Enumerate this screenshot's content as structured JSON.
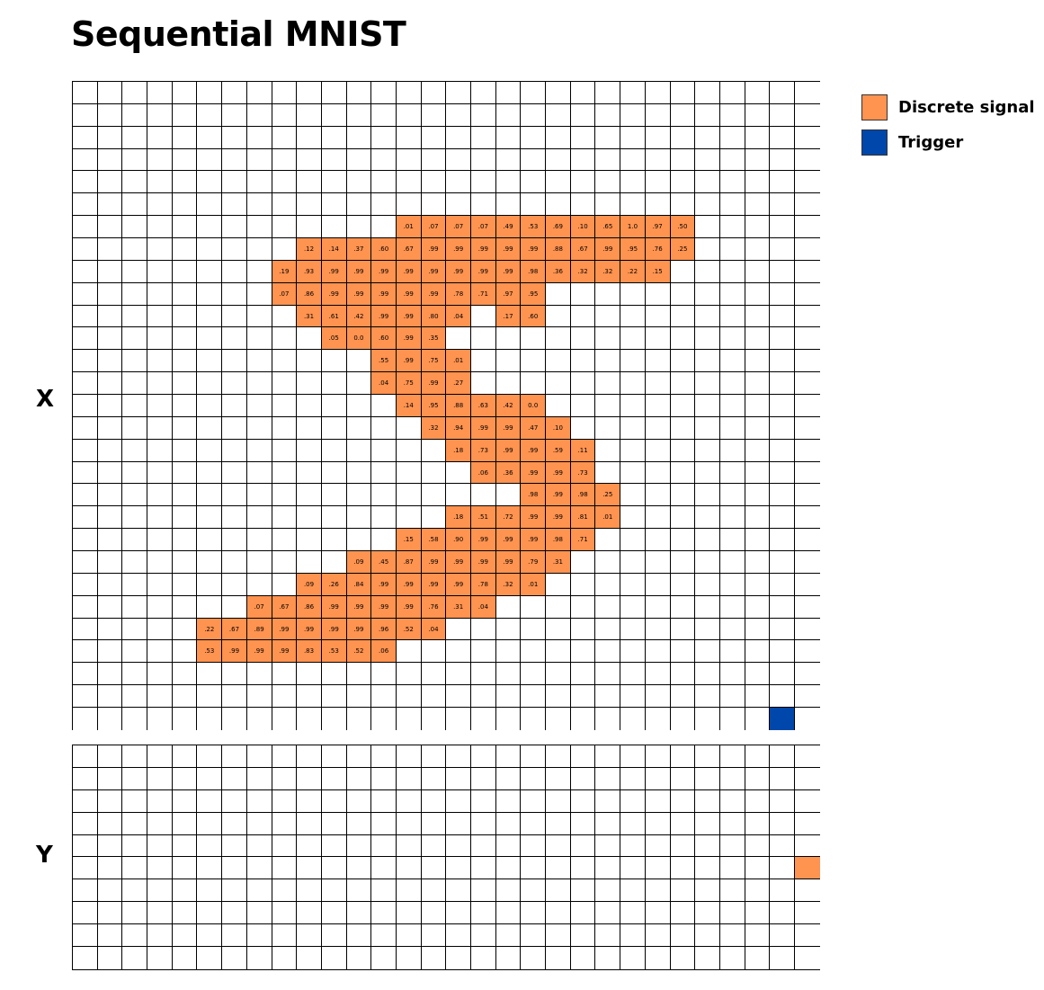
{
  "title": "Sequential MNIST",
  "x_label": "X",
  "y_label": "Y",
  "colors": {
    "signal": "#FF9350",
    "trigger": "#0047AB"
  },
  "legend": [
    {
      "label": "Discrete signal",
      "color": "#FF9350"
    },
    {
      "label": "Trigger",
      "color": "#0047AB"
    }
  ],
  "x_grid": {
    "rows": 29,
    "cols": 30,
    "cells": [
      {
        "r": 6,
        "c": 13,
        "v": ".01"
      },
      {
        "r": 6,
        "c": 14,
        "v": ".07"
      },
      {
        "r": 6,
        "c": 15,
        "v": ".07"
      },
      {
        "r": 6,
        "c": 16,
        "v": ".07"
      },
      {
        "r": 6,
        "c": 17,
        "v": ".49"
      },
      {
        "r": 6,
        "c": 18,
        "v": ".53"
      },
      {
        "r": 6,
        "c": 19,
        "v": ".69"
      },
      {
        "r": 6,
        "c": 20,
        "v": ".10"
      },
      {
        "r": 6,
        "c": 21,
        "v": ".65"
      },
      {
        "r": 6,
        "c": 22,
        "v": "1.0"
      },
      {
        "r": 6,
        "c": 23,
        "v": ".97"
      },
      {
        "r": 6,
        "c": 24,
        "v": ".50"
      },
      {
        "r": 7,
        "c": 9,
        "v": ".12"
      },
      {
        "r": 7,
        "c": 10,
        "v": ".14"
      },
      {
        "r": 7,
        "c": 11,
        "v": ".37"
      },
      {
        "r": 7,
        "c": 12,
        "v": ".60"
      },
      {
        "r": 7,
        "c": 13,
        "v": ".67"
      },
      {
        "r": 7,
        "c": 14,
        "v": ".99"
      },
      {
        "r": 7,
        "c": 15,
        "v": ".99"
      },
      {
        "r": 7,
        "c": 16,
        "v": ".99"
      },
      {
        "r": 7,
        "c": 17,
        "v": ".99"
      },
      {
        "r": 7,
        "c": 18,
        "v": ".99"
      },
      {
        "r": 7,
        "c": 19,
        "v": ".88"
      },
      {
        "r": 7,
        "c": 20,
        "v": ".67"
      },
      {
        "r": 7,
        "c": 21,
        "v": ".99"
      },
      {
        "r": 7,
        "c": 22,
        "v": ".95"
      },
      {
        "r": 7,
        "c": 23,
        "v": ".76"
      },
      {
        "r": 7,
        "c": 24,
        "v": ".25"
      },
      {
        "r": 8,
        "c": 8,
        "v": ".19"
      },
      {
        "r": 8,
        "c": 9,
        "v": ".93"
      },
      {
        "r": 8,
        "c": 10,
        "v": ".99"
      },
      {
        "r": 8,
        "c": 11,
        "v": ".99"
      },
      {
        "r": 8,
        "c": 12,
        "v": ".99"
      },
      {
        "r": 8,
        "c": 13,
        "v": ".99"
      },
      {
        "r": 8,
        "c": 14,
        "v": ".99"
      },
      {
        "r": 8,
        "c": 15,
        "v": ".99"
      },
      {
        "r": 8,
        "c": 16,
        "v": ".99"
      },
      {
        "r": 8,
        "c": 17,
        "v": ".99"
      },
      {
        "r": 8,
        "c": 18,
        "v": ".98"
      },
      {
        "r": 8,
        "c": 19,
        "v": ".36"
      },
      {
        "r": 8,
        "c": 20,
        "v": ".32"
      },
      {
        "r": 8,
        "c": 21,
        "v": ".32"
      },
      {
        "r": 8,
        "c": 22,
        "v": ".22"
      },
      {
        "r": 8,
        "c": 23,
        "v": ".15"
      },
      {
        "r": 9,
        "c": 8,
        "v": ".07"
      },
      {
        "r": 9,
        "c": 9,
        "v": ".86"
      },
      {
        "r": 9,
        "c": 10,
        "v": ".99"
      },
      {
        "r": 9,
        "c": 11,
        "v": ".99"
      },
      {
        "r": 9,
        "c": 12,
        "v": ".99"
      },
      {
        "r": 9,
        "c": 13,
        "v": ".99"
      },
      {
        "r": 9,
        "c": 14,
        "v": ".99"
      },
      {
        "r": 9,
        "c": 15,
        "v": ".78"
      },
      {
        "r": 9,
        "c": 16,
        "v": ".71"
      },
      {
        "r": 9,
        "c": 17,
        "v": ".97"
      },
      {
        "r": 9,
        "c": 18,
        "v": ".95"
      },
      {
        "r": 10,
        "c": 9,
        "v": ".31"
      },
      {
        "r": 10,
        "c": 10,
        "v": ".61"
      },
      {
        "r": 10,
        "c": 11,
        "v": ".42"
      },
      {
        "r": 10,
        "c": 12,
        "v": ".99"
      },
      {
        "r": 10,
        "c": 13,
        "v": ".99"
      },
      {
        "r": 10,
        "c": 14,
        "v": ".80"
      },
      {
        "r": 10,
        "c": 15,
        "v": ".04"
      },
      {
        "r": 10,
        "c": 17,
        "v": ".17"
      },
      {
        "r": 10,
        "c": 18,
        "v": ".60"
      },
      {
        "r": 11,
        "c": 10,
        "v": ".05"
      },
      {
        "r": 11,
        "c": 11,
        "v": "0.0"
      },
      {
        "r": 11,
        "c": 12,
        "v": ".60"
      },
      {
        "r": 11,
        "c": 13,
        "v": ".99"
      },
      {
        "r": 11,
        "c": 14,
        "v": ".35"
      },
      {
        "r": 12,
        "c": 12,
        "v": ".55"
      },
      {
        "r": 12,
        "c": 13,
        "v": ".99"
      },
      {
        "r": 12,
        "c": 14,
        "v": ".75"
      },
      {
        "r": 12,
        "c": 15,
        "v": ".01"
      },
      {
        "r": 13,
        "c": 12,
        "v": ".04"
      },
      {
        "r": 13,
        "c": 13,
        "v": ".75"
      },
      {
        "r": 13,
        "c": 14,
        "v": ".99"
      },
      {
        "r": 13,
        "c": 15,
        "v": ".27"
      },
      {
        "r": 14,
        "c": 13,
        "v": ".14"
      },
      {
        "r": 14,
        "c": 14,
        "v": ".95"
      },
      {
        "r": 14,
        "c": 15,
        "v": ".88"
      },
      {
        "r": 14,
        "c": 16,
        "v": ".63"
      },
      {
        "r": 14,
        "c": 17,
        "v": ".42"
      },
      {
        "r": 14,
        "c": 18,
        "v": "0.0"
      },
      {
        "r": 15,
        "c": 14,
        "v": ".32"
      },
      {
        "r": 15,
        "c": 15,
        "v": ".94"
      },
      {
        "r": 15,
        "c": 16,
        "v": ".99"
      },
      {
        "r": 15,
        "c": 17,
        "v": ".99"
      },
      {
        "r": 15,
        "c": 18,
        "v": ".47"
      },
      {
        "r": 15,
        "c": 19,
        "v": ".10"
      },
      {
        "r": 16,
        "c": 15,
        "v": ".18"
      },
      {
        "r": 16,
        "c": 16,
        "v": ".73"
      },
      {
        "r": 16,
        "c": 17,
        "v": ".99"
      },
      {
        "r": 16,
        "c": 18,
        "v": ".99"
      },
      {
        "r": 16,
        "c": 19,
        "v": ".59"
      },
      {
        "r": 16,
        "c": 20,
        "v": ".11"
      },
      {
        "r": 17,
        "c": 16,
        "v": ".06"
      },
      {
        "r": 17,
        "c": 17,
        "v": ".36"
      },
      {
        "r": 17,
        "c": 18,
        "v": ".99"
      },
      {
        "r": 17,
        "c": 19,
        "v": ".99"
      },
      {
        "r": 17,
        "c": 20,
        "v": ".73"
      },
      {
        "r": 18,
        "c": 18,
        "v": ".98"
      },
      {
        "r": 18,
        "c": 19,
        "v": ".99"
      },
      {
        "r": 18,
        "c": 20,
        "v": ".98"
      },
      {
        "r": 18,
        "c": 21,
        "v": ".25"
      },
      {
        "r": 19,
        "c": 15,
        "v": ".18"
      },
      {
        "r": 19,
        "c": 16,
        "v": ".51"
      },
      {
        "r": 19,
        "c": 17,
        "v": ".72"
      },
      {
        "r": 19,
        "c": 18,
        "v": ".99"
      },
      {
        "r": 19,
        "c": 19,
        "v": ".99"
      },
      {
        "r": 19,
        "c": 20,
        "v": ".81"
      },
      {
        "r": 19,
        "c": 21,
        "v": ".01"
      },
      {
        "r": 20,
        "c": 13,
        "v": ".15"
      },
      {
        "r": 20,
        "c": 14,
        "v": ".58"
      },
      {
        "r": 20,
        "c": 15,
        "v": ".90"
      },
      {
        "r": 20,
        "c": 16,
        "v": ".99"
      },
      {
        "r": 20,
        "c": 17,
        "v": ".99"
      },
      {
        "r": 20,
        "c": 18,
        "v": ".99"
      },
      {
        "r": 20,
        "c": 19,
        "v": ".98"
      },
      {
        "r": 20,
        "c": 20,
        "v": ".71"
      },
      {
        "r": 21,
        "c": 11,
        "v": ".09"
      },
      {
        "r": 21,
        "c": 12,
        "v": ".45"
      },
      {
        "r": 21,
        "c": 13,
        "v": ".87"
      },
      {
        "r": 21,
        "c": 14,
        "v": ".99"
      },
      {
        "r": 21,
        "c": 15,
        "v": ".99"
      },
      {
        "r": 21,
        "c": 16,
        "v": ".99"
      },
      {
        "r": 21,
        "c": 17,
        "v": ".99"
      },
      {
        "r": 21,
        "c": 18,
        "v": ".79"
      },
      {
        "r": 21,
        "c": 19,
        "v": ".31"
      },
      {
        "r": 22,
        "c": 9,
        "v": ".09"
      },
      {
        "r": 22,
        "c": 10,
        "v": ".26"
      },
      {
        "r": 22,
        "c": 11,
        "v": ".84"
      },
      {
        "r": 22,
        "c": 12,
        "v": ".99"
      },
      {
        "r": 22,
        "c": 13,
        "v": ".99"
      },
      {
        "r": 22,
        "c": 14,
        "v": ".99"
      },
      {
        "r": 22,
        "c": 15,
        "v": ".99"
      },
      {
        "r": 22,
        "c": 16,
        "v": ".78"
      },
      {
        "r": 22,
        "c": 17,
        "v": ".32"
      },
      {
        "r": 22,
        "c": 18,
        "v": ".01"
      },
      {
        "r": 23,
        "c": 7,
        "v": ".07"
      },
      {
        "r": 23,
        "c": 8,
        "v": ".67"
      },
      {
        "r": 23,
        "c": 9,
        "v": ".86"
      },
      {
        "r": 23,
        "c": 10,
        "v": ".99"
      },
      {
        "r": 23,
        "c": 11,
        "v": ".99"
      },
      {
        "r": 23,
        "c": 12,
        "v": ".99"
      },
      {
        "r": 23,
        "c": 13,
        "v": ".99"
      },
      {
        "r": 23,
        "c": 14,
        "v": ".76"
      },
      {
        "r": 23,
        "c": 15,
        "v": ".31"
      },
      {
        "r": 23,
        "c": 16,
        "v": ".04"
      },
      {
        "r": 24,
        "c": 5,
        "v": ".22"
      },
      {
        "r": 24,
        "c": 6,
        "v": ".67"
      },
      {
        "r": 24,
        "c": 7,
        "v": ".89"
      },
      {
        "r": 24,
        "c": 8,
        "v": ".99"
      },
      {
        "r": 24,
        "c": 9,
        "v": ".99"
      },
      {
        "r": 24,
        "c": 10,
        "v": ".99"
      },
      {
        "r": 24,
        "c": 11,
        "v": ".99"
      },
      {
        "r": 24,
        "c": 12,
        "v": ".96"
      },
      {
        "r": 24,
        "c": 13,
        "v": ".52"
      },
      {
        "r": 24,
        "c": 14,
        "v": ".04"
      },
      {
        "r": 25,
        "c": 5,
        "v": ".53"
      },
      {
        "r": 25,
        "c": 6,
        "v": ".99"
      },
      {
        "r": 25,
        "c": 7,
        "v": ".99"
      },
      {
        "r": 25,
        "c": 8,
        "v": ".99"
      },
      {
        "r": 25,
        "c": 9,
        "v": ".83"
      },
      {
        "r": 25,
        "c": 10,
        "v": ".53"
      },
      {
        "r": 25,
        "c": 11,
        "v": ".52"
      },
      {
        "r": 25,
        "c": 12,
        "v": ".06"
      }
    ],
    "trigger": {
      "r": 28,
      "c": 28
    }
  },
  "y_grid": {
    "rows": 10,
    "cols": 30,
    "signal": {
      "r": 5,
      "c": 29
    }
  }
}
